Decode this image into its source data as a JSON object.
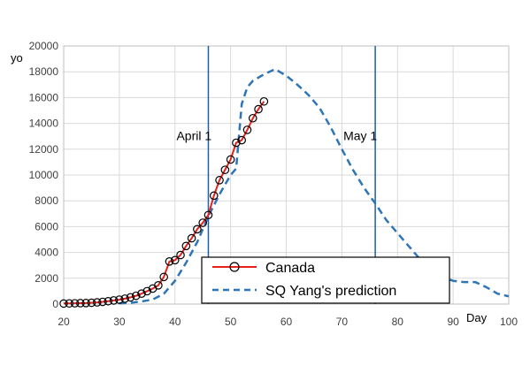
{
  "chart_data": {
    "type": "line",
    "ylabel": "yo",
    "xlabel": "Day",
    "xlim": [
      20,
      100
    ],
    "ylim": [
      0,
      20000
    ],
    "x_ticks": [
      "20",
      "30",
      "40",
      "50",
      "60",
      "70",
      "80",
      "90",
      "100"
    ],
    "y_ticks": [
      "0",
      "2000",
      "4000",
      "6000",
      "8000",
      "10000",
      "12000",
      "14000",
      "16000",
      "18000",
      "20000"
    ],
    "grid": true,
    "legend_position": "bottom-center",
    "colors": {
      "canada": "#e8201a",
      "prediction": "#2e75b6",
      "vline": "#1f5f9e",
      "grid": "#d9d9d9"
    },
    "vlines": [
      {
        "x": 46,
        "label": "April 1"
      },
      {
        "x": 76,
        "label": "May 1"
      }
    ],
    "series": [
      {
        "name": "Canada",
        "style": "solid-with-circle-markers",
        "x": [
          20,
          21,
          22,
          23,
          24,
          25,
          26,
          27,
          28,
          29,
          30,
          31,
          32,
          33,
          34,
          35,
          36,
          37,
          38,
          39,
          40,
          41,
          42,
          43,
          44,
          45,
          46,
          47,
          48,
          49,
          50,
          51,
          52,
          53,
          54,
          55,
          56
        ],
        "y": [
          40,
          50,
          60,
          70,
          80,
          100,
          130,
          170,
          220,
          280,
          340,
          420,
          520,
          640,
          810,
          1000,
          1200,
          1450,
          2100,
          3300,
          3400,
          3800,
          4500,
          5100,
          5800,
          6300,
          6900,
          8400,
          9600,
          10400,
          11200,
          12500,
          12700,
          13500,
          14400,
          15100,
          15700
        ]
      },
      {
        "name": "SQ Yang's prediction",
        "style": "dashed",
        "x": [
          30,
          32,
          34,
          36,
          38,
          40,
          42,
          44,
          46,
          48,
          50,
          51,
          52,
          53,
          54,
          56,
          58,
          60,
          62,
          64,
          66,
          68,
          70,
          72,
          74,
          76,
          78,
          80,
          82,
          84,
          86,
          88,
          90,
          92,
          94,
          96,
          98,
          100
        ],
        "y": [
          50,
          100,
          200,
          350,
          800,
          1800,
          3200,
          4800,
          6800,
          8500,
          10000,
          10500,
          15500,
          16800,
          17300,
          17800,
          18200,
          17700,
          17000,
          16200,
          15200,
          13700,
          12000,
          10400,
          9000,
          7800,
          6500,
          5500,
          4500,
          3500,
          2600,
          2100,
          1800,
          1700,
          1700,
          1300,
          800,
          600
        ]
      }
    ]
  }
}
